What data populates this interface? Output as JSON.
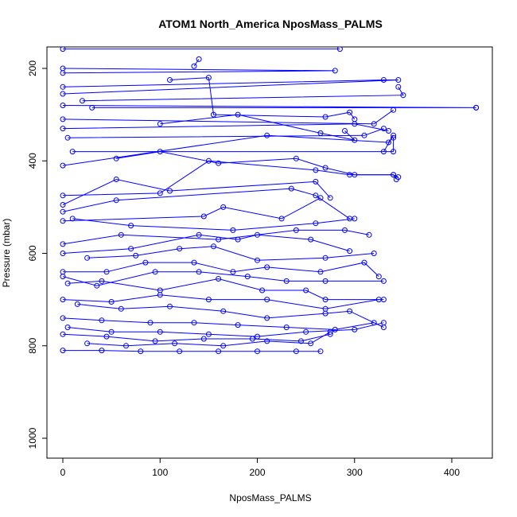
{
  "chart_data": {
    "type": "line",
    "title": "ATOM1 North_America NposMass_PALMS",
    "xlabel": "NposMass_PALMS",
    "ylabel": "Pressure (mbar)",
    "xlim": [
      0,
      430
    ],
    "ylim": [
      1020,
      160
    ],
    "y_reversed": true,
    "x_ticks": [
      0,
      100,
      200,
      300,
      400
    ],
    "x_tick_labels": [
      "0",
      "100",
      "200",
      "300",
      "400"
    ],
    "y_ticks": [
      200,
      400,
      600,
      800,
      1000
    ],
    "y_tick_labels": [
      "200",
      "400",
      "600",
      "800",
      "1000"
    ],
    "grid": false,
    "series_color": "#0000ff",
    "markers": "open-circle",
    "series": [
      {
        "x": [
          0,
          285
        ],
        "y": [
          158,
          158
        ]
      },
      {
        "x": [
          0,
          280,
          0
        ],
        "y": [
          200,
          205,
          210
        ]
      },
      {
        "x": [
          135,
          140
        ],
        "y": [
          195,
          180
        ]
      },
      {
        "x": [
          0,
          330,
          345,
          0
        ],
        "y": [
          240,
          225,
          225,
          255
        ]
      },
      {
        "x": [
          345,
          350,
          20
        ],
        "y": [
          240,
          258,
          270
        ]
      },
      {
        "x": [
          0,
          425,
          30,
          425
        ],
        "y": [
          280,
          285,
          285,
          285
        ]
      },
      {
        "x": [
          110,
          150,
          155,
          270,
          295,
          300
        ],
        "y": [
          225,
          220,
          300,
          305,
          295,
          310
        ]
      },
      {
        "x": [
          0,
          320,
          340
        ],
        "y": [
          310,
          320,
          290
        ]
      },
      {
        "x": [
          0,
          300,
          335
        ],
        "y": [
          330,
          320,
          335
        ]
      },
      {
        "x": [
          5,
          310,
          330
        ],
        "y": [
          350,
          345,
          330
        ]
      },
      {
        "x": [
          100,
          180,
          265,
          300,
          290
        ],
        "y": [
          320,
          300,
          340,
          355,
          335
        ]
      },
      {
        "x": [
          10,
          340,
          340
        ],
        "y": [
          380,
          380,
          350
        ]
      },
      {
        "x": [
          0,
          210,
          335,
          340,
          330
        ],
        "y": [
          410,
          345,
          360,
          345,
          380
        ]
      },
      {
        "x": [
          55,
          100,
          160,
          240,
          270,
          300,
          340,
          345
        ],
        "y": [
          395,
          380,
          405,
          395,
          415,
          430,
          430,
          435
        ]
      },
      {
        "x": [
          0,
          100,
          150,
          260,
          295,
          340,
          343
        ],
        "y": [
          475,
          470,
          400,
          420,
          430,
          430,
          440
        ]
      },
      {
        "x": [
          0,
          55,
          110,
          260,
          275
        ],
        "y": [
          495,
          440,
          465,
          445,
          480
        ]
      },
      {
        "x": [
          0,
          55,
          235,
          260,
          295
        ],
        "y": [
          510,
          485,
          460,
          475,
          525
        ]
      },
      {
        "x": [
          0,
          145,
          165,
          225,
          265
        ],
        "y": [
          530,
          520,
          500,
          525,
          480
        ]
      },
      {
        "x": [
          10,
          70,
          175,
          260,
          300
        ],
        "y": [
          525,
          540,
          550,
          535,
          525
        ]
      },
      {
        "x": [
          0,
          60,
          160,
          240,
          290,
          315
        ],
        "y": [
          580,
          560,
          570,
          550,
          550,
          560
        ]
      },
      {
        "x": [
          0,
          70,
          140,
          180,
          200,
          255,
          295
        ],
        "y": [
          600,
          590,
          560,
          570,
          560,
          570,
          595
        ]
      },
      {
        "x": [
          25,
          75,
          120,
          155,
          200,
          270,
          320
        ],
        "y": [
          610,
          605,
          590,
          585,
          615,
          610,
          600
        ]
      },
      {
        "x": [
          0,
          45,
          85,
          135,
          175,
          210,
          265,
          310,
          325
        ],
        "y": [
          640,
          640,
          620,
          620,
          640,
          630,
          640,
          620,
          650
        ]
      },
      {
        "x": [
          0,
          35,
          95,
          140,
          190,
          230,
          270,
          330
        ],
        "y": [
          650,
          670,
          640,
          640,
          650,
          660,
          660,
          660
        ]
      },
      {
        "x": [
          5,
          40,
          100,
          160,
          205,
          250,
          270,
          330
        ],
        "y": [
          665,
          660,
          680,
          655,
          680,
          680,
          700,
          700
        ]
      },
      {
        "x": [
          0,
          50,
          100,
          150,
          210,
          270,
          325
        ],
        "y": [
          700,
          705,
          690,
          700,
          700,
          720,
          700
        ]
      },
      {
        "x": [
          15,
          60,
          110,
          165,
          210,
          270,
          295,
          330
        ],
        "y": [
          710,
          720,
          715,
          725,
          740,
          730,
          725,
          760
        ]
      },
      {
        "x": [
          0,
          40,
          90,
          135,
          180,
          230,
          280,
          320
        ],
        "y": [
          740,
          745,
          750,
          750,
          755,
          760,
          765,
          750
        ]
      },
      {
        "x": [
          5,
          50,
          100,
          150,
          200,
          250,
          300,
          330
        ],
        "y": [
          760,
          770,
          770,
          775,
          780,
          770,
          765,
          750
        ]
      },
      {
        "x": [
          0,
          45,
          95,
          145,
          195,
          245,
          275
        ],
        "y": [
          775,
          780,
          790,
          785,
          785,
          790,
          775
        ]
      },
      {
        "x": [
          25,
          65,
          115,
          165,
          210,
          255,
          275
        ],
        "y": [
          795,
          800,
          795,
          800,
          790,
          795,
          770
        ]
      },
      {
        "x": [
          0,
          40,
          80,
          120,
          160,
          200,
          240,
          265
        ],
        "y": [
          810,
          810,
          812,
          812,
          812,
          812,
          812,
          812
        ]
      }
    ]
  }
}
